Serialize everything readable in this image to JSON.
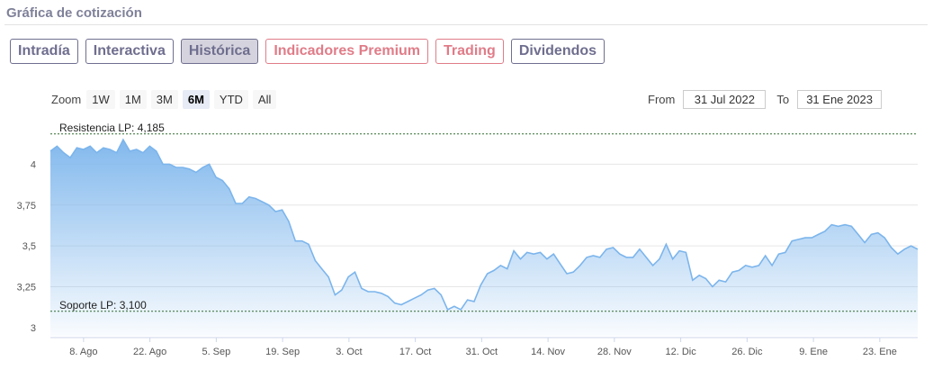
{
  "panel": {
    "title": "Gráfica de cotización"
  },
  "tabs": [
    {
      "label": "Intradía",
      "style": "normal"
    },
    {
      "label": "Interactiva",
      "style": "normal"
    },
    {
      "label": "Histórica",
      "style": "active"
    },
    {
      "label": "Indicadores Premium",
      "style": "premium"
    },
    {
      "label": "Trading",
      "style": "premium"
    },
    {
      "label": "Dividendos",
      "style": "normal"
    }
  ],
  "zoom": {
    "label": "Zoom",
    "options": [
      "1W",
      "1M",
      "3M",
      "6M",
      "YTD",
      "All"
    ],
    "selected": "6M"
  },
  "range": {
    "from_label": "From",
    "from_value": "31 Jul 2022",
    "to_label": "To",
    "to_value": "31 Ene 2023"
  },
  "colors": {
    "line": "#7cb5ec",
    "area_top": "#7cb5ec",
    "tab_normal": "#6f6e8f",
    "tab_premium": "#e07c88",
    "reference_line": "#2e6b2e"
  },
  "chart_data": {
    "type": "area",
    "x_start_date": "2022-08-01",
    "x_end_date": "2023-01-31",
    "series": [
      {
        "values": [
          4.08,
          4.11,
          4.07,
          4.04,
          4.1,
          4.09,
          4.11,
          4.07,
          4.1,
          4.09,
          4.07,
          4.15,
          4.08,
          4.09,
          4.07,
          4.11,
          4.08,
          4.0,
          4.0,
          3.98,
          3.98,
          3.97,
          3.95,
          3.98,
          4.0,
          3.92,
          3.9,
          3.85,
          3.76,
          3.76,
          3.8,
          3.79,
          3.77,
          3.75,
          3.71,
          3.72,
          3.65,
          3.53,
          3.53,
          3.51,
          3.41,
          3.36,
          3.31,
          3.2,
          3.23,
          3.31,
          3.34,
          3.24,
          3.22,
          3.22,
          3.21,
          3.19,
          3.15,
          3.14,
          3.16,
          3.18,
          3.2,
          3.23,
          3.24,
          3.2,
          3.11,
          3.13,
          3.11,
          3.17,
          3.16,
          3.26,
          3.33,
          3.35,
          3.38,
          3.36,
          3.47,
          3.42,
          3.46,
          3.45,
          3.46,
          3.42,
          3.45,
          3.39,
          3.33,
          3.34,
          3.38,
          3.43,
          3.44,
          3.43,
          3.48,
          3.49,
          3.45,
          3.43,
          3.43,
          3.48,
          3.43,
          3.38,
          3.42,
          3.51,
          3.42,
          3.47,
          3.46,
          3.29,
          3.32,
          3.3,
          3.25,
          3.29,
          3.28,
          3.34,
          3.35,
          3.38,
          3.37,
          3.38,
          3.44,
          3.38,
          3.45,
          3.46,
          3.53,
          3.54,
          3.55,
          3.55,
          3.57,
          3.59,
          3.63,
          3.62,
          3.63,
          3.62,
          3.57,
          3.52,
          3.57,
          3.58,
          3.55,
          3.49,
          3.45,
          3.48,
          3.5,
          3.48
        ]
      }
    ],
    "y_ticks": [
      3,
      3.25,
      3.5,
      3.75,
      4
    ],
    "y_tick_labels": [
      "3",
      "3,25",
      "3,5",
      "3,75",
      "4"
    ],
    "ylim": [
      2.95,
      4.25
    ],
    "x_tick_labels": [
      "8. Ago",
      "22. Ago",
      "5. Sep",
      "19. Sep",
      "3. Oct",
      "17. Oct",
      "31. Oct",
      "14. Nov",
      "28. Nov",
      "12. Dic",
      "26. Dic",
      "9. Ene",
      "23. Ene"
    ],
    "x_tick_dates": [
      "2022-08-08",
      "2022-08-22",
      "2022-09-05",
      "2022-09-19",
      "2022-10-03",
      "2022-10-17",
      "2022-10-31",
      "2022-11-14",
      "2022-11-28",
      "2022-12-12",
      "2022-12-26",
      "2023-01-09",
      "2023-01-23"
    ],
    "reference_lines": [
      {
        "label": "Resistencia LP: 4,185",
        "value": 4.185
      },
      {
        "label": "Soporte LP: 3,100",
        "value": 3.1
      }
    ],
    "grid": true
  }
}
